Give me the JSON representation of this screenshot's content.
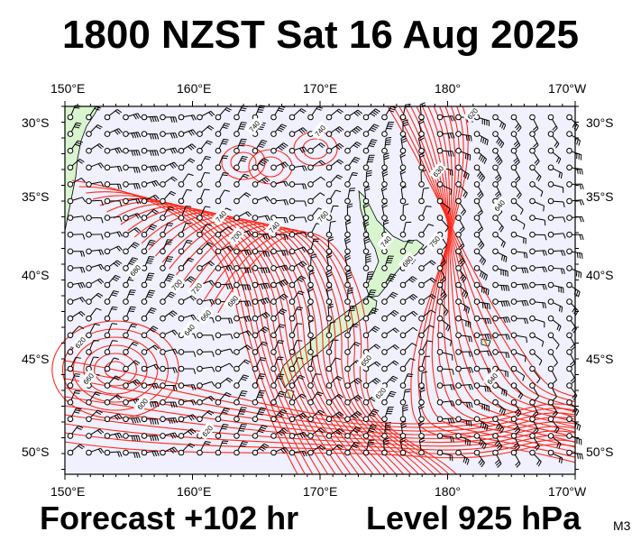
{
  "header": {
    "title": "1800 NZST Sat 16 Aug 2025"
  },
  "footer": {
    "forecast": "Forecast +102 hr",
    "level": "Level 925 hPa",
    "model": "M3"
  },
  "axes": {
    "lon_labels": [
      "150°E",
      "160°E",
      "170°E",
      "180°",
      "170°W"
    ],
    "lat_labels": [
      "30°S",
      "35°S",
      "40°S",
      "45°S",
      "50°S"
    ]
  },
  "contour_labels": [
    "740",
    "740",
    "740",
    "740",
    "760",
    "700",
    "720",
    "680",
    "660",
    "640",
    "620",
    "600",
    "620",
    "660",
    "680",
    "700",
    "740",
    "750",
    "680",
    "620",
    "630",
    "640",
    "650",
    "620",
    "640"
  ],
  "colors": {
    "ocean": "#f0f0ff",
    "land": "#d8f5d0",
    "contour": "#ff2a1a",
    "wind": "#000000",
    "frame": "#000000"
  }
}
